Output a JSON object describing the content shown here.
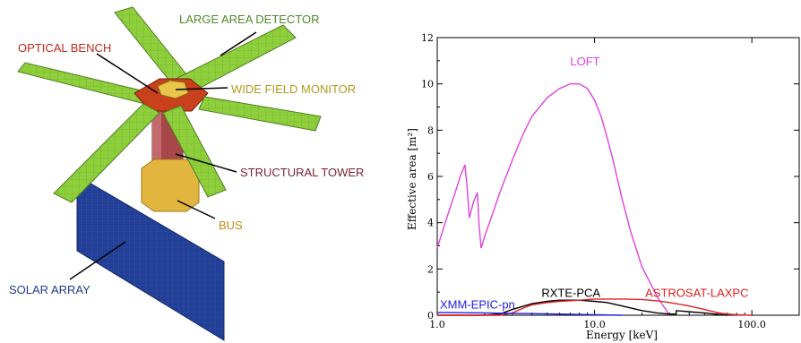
{
  "diagram": {
    "labels": {
      "large_area_detector": "LARGE AREA DETECTOR",
      "optical_bench": "OPTICAL BENCH",
      "wide_field_monitor": "WIDE FIELD MONITOR",
      "structural_tower": "STRUCTURAL TOWER",
      "bus": "BUS",
      "solar_array": "SOLAR ARRAY"
    },
    "colors": {
      "detector": "#8fcf3c",
      "detector_label": "#4f8a2a",
      "bench": "#c8401c",
      "bench_label": "#c0281a",
      "monitor": "#e8c64a",
      "monitor_label": "#b39a1d",
      "tower": "#a8474a",
      "tower_label": "#7a1f2e",
      "bus": "#e2b63e",
      "bus_label": "#c78a16",
      "solar": "#1f3d8f",
      "solar_label": "#1f3d8f"
    }
  },
  "chart_data": {
    "type": "line",
    "xscale": "log",
    "xlim": [
      1.0,
      200.0
    ],
    "ylim": [
      0,
      12
    ],
    "xlabel": "Energy  [keV]",
    "ylabel": "Effective area  [m²]",
    "x_ticks": [
      1.0,
      10.0,
      100.0
    ],
    "x_tick_labels": [
      "1.0",
      "10.0",
      "100.0"
    ],
    "y_ticks": [
      0,
      2,
      4,
      6,
      8,
      10,
      12
    ],
    "y_tick_labels": [
      "0",
      "2",
      "4",
      "6",
      "8",
      "10",
      "12"
    ],
    "series": [
      {
        "name": "LOFT",
        "color": "#e040e0",
        "x": [
          1.0,
          1.1,
          1.2,
          1.3,
          1.4,
          1.5,
          1.55,
          1.6,
          1.7,
          1.8,
          1.84,
          1.9,
          2.0,
          2.2,
          2.5,
          3.0,
          3.5,
          4.0,
          5.0,
          6.0,
          7.0,
          8.0,
          9.0,
          10.0,
          11.0,
          12.0,
          13.0,
          15.0,
          17.0,
          20.0,
          25.0,
          30.0
        ],
        "y": [
          2.9,
          3.8,
          4.6,
          5.3,
          6.0,
          6.5,
          5.5,
          4.2,
          4.9,
          5.3,
          4.0,
          2.9,
          3.4,
          4.2,
          5.3,
          6.7,
          7.8,
          8.6,
          9.4,
          9.8,
          10.0,
          10.0,
          9.8,
          9.3,
          8.6,
          7.7,
          6.8,
          5.0,
          3.6,
          2.1,
          0.8,
          0.0
        ]
      },
      {
        "name": "RXTE-PCA",
        "color": "#000000",
        "x": [
          1.0,
          2.0,
          2.5,
          3.0,
          4.0,
          5.0,
          6.0,
          8.0,
          10.0,
          12.0,
          15.0,
          20.0,
          25.0,
          30.0,
          33.0,
          33.1,
          40.0,
          50.0,
          60.0,
          70.0
        ],
        "y": [
          0.0,
          0.0,
          0.05,
          0.25,
          0.5,
          0.6,
          0.65,
          0.65,
          0.6,
          0.55,
          0.4,
          0.2,
          0.1,
          0.05,
          0.05,
          0.2,
          0.15,
          0.1,
          0.04,
          0.0
        ]
      },
      {
        "name": "ASTROSAT-LAXPC",
        "color": "#e02020",
        "x": [
          1.0,
          2.5,
          3.0,
          3.5,
          4.0,
          5.0,
          6.0,
          8.0,
          10.0,
          15.0,
          20.0,
          25.0,
          30.0,
          40.0,
          50.0,
          60.0,
          70.0,
          80.0,
          90.0,
          100.0
        ],
        "y": [
          0.0,
          0.0,
          0.1,
          0.3,
          0.45,
          0.55,
          0.6,
          0.65,
          0.7,
          0.7,
          0.68,
          0.62,
          0.55,
          0.4,
          0.25,
          0.12,
          0.05,
          0.02,
          0.01,
          0.0
        ]
      },
      {
        "name": "XMM-EPIC-pn",
        "color": "#2020e0",
        "x": [
          1.0,
          2.0,
          5.0,
          10.0,
          15.0
        ],
        "y": [
          0.12,
          0.1,
          0.06,
          0.02,
          0.0
        ]
      }
    ],
    "annotations": [
      {
        "text": "LOFT",
        "color": "#e040e0",
        "x": 7.0,
        "y": 10.8
      },
      {
        "text": "RXTE-PCA",
        "color": "#000000",
        "x": 4.6,
        "y": 0.8
      },
      {
        "text": "ASTROSAT-LAXPC",
        "color": "#e02020",
        "x": 21.0,
        "y": 0.8
      },
      {
        "text": "XMM-EPIC-pn",
        "color": "#2020e0",
        "x": 1.04,
        "y": 0.3
      }
    ]
  }
}
